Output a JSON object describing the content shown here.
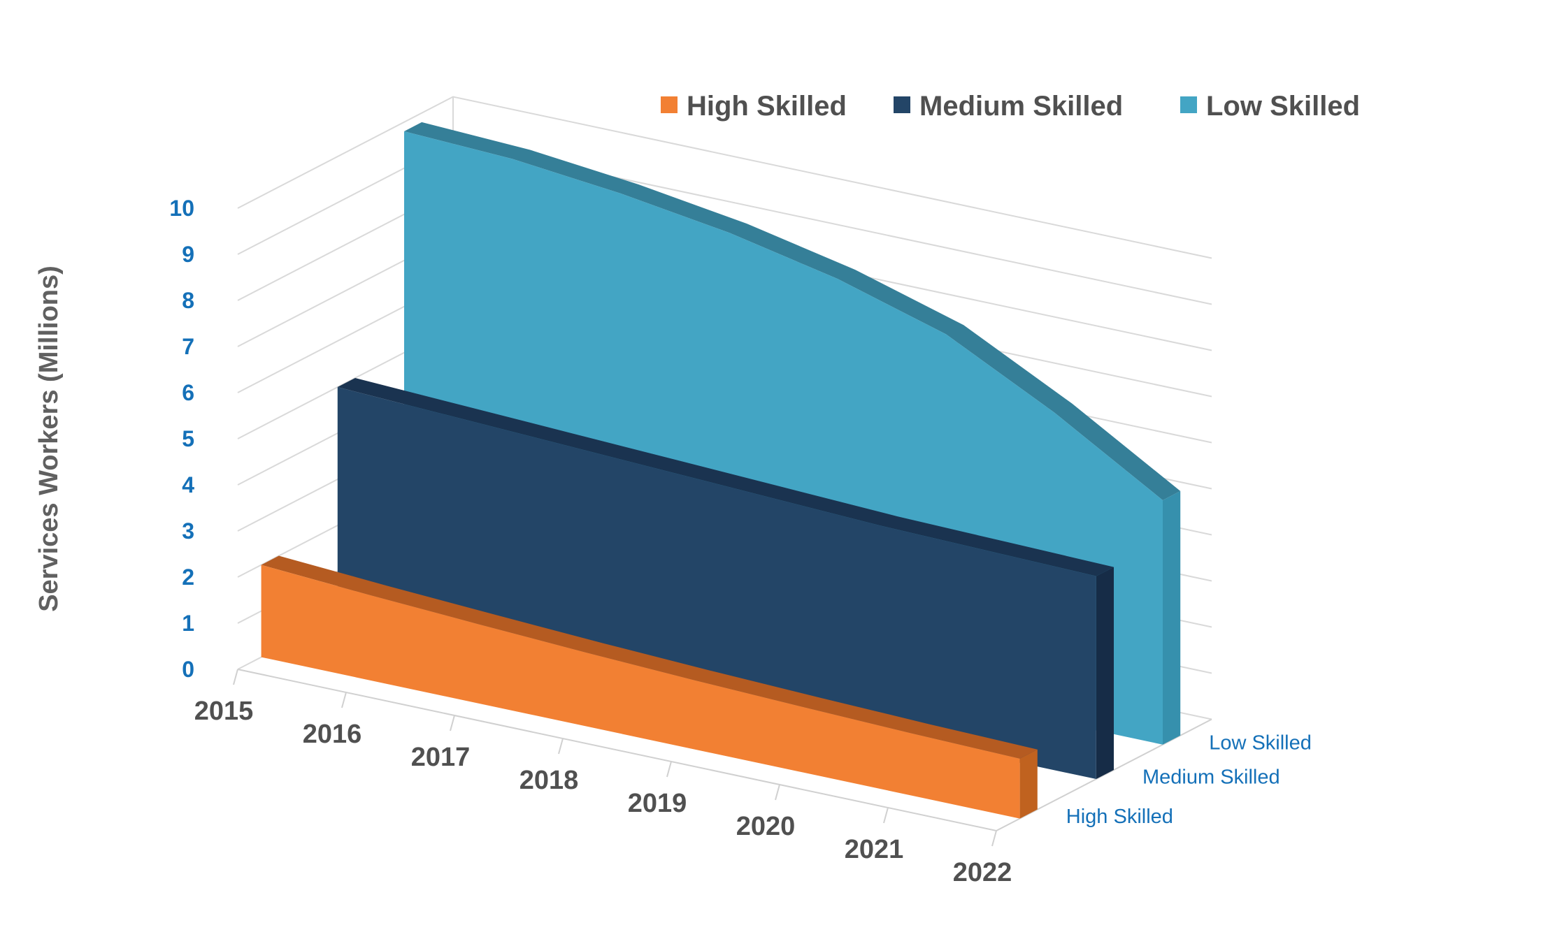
{
  "chart_data": {
    "type": "area",
    "variant": "3d-ribbon",
    "title": "",
    "xlabel": "",
    "ylabel": "Services Workers (Millions)",
    "ylim": [
      0,
      10
    ],
    "yticks": [
      "0",
      "1",
      "2",
      "3",
      "4",
      "5",
      "6",
      "7",
      "8",
      "9",
      "10"
    ],
    "categories": [
      "2015",
      "2016",
      "2017",
      "2018",
      "2019",
      "2020",
      "2021",
      "2022"
    ],
    "depth_labels": [
      "High Skilled",
      "Medium Skilled",
      "Low Skilled"
    ],
    "series": [
      {
        "name": "High Skilled",
        "color": "#f28033",
        "top_color": "#b55b21",
        "side_color": "#c0621f",
        "values": [
          2.0,
          1.85,
          1.72,
          1.6,
          1.5,
          1.42,
          1.35,
          1.3
        ]
      },
      {
        "name": "Medium Skilled",
        "color": "#234567",
        "top_color": "#1a3350",
        "side_color": "#162c47",
        "values": [
          5.0,
          4.9,
          4.8,
          4.7,
          4.6,
          4.5,
          4.45,
          4.4
        ]
      },
      {
        "name": "Low Skilled",
        "color": "#43a5c4",
        "top_color": "#357f98",
        "side_color": "#3690ad",
        "values": [
          9.8,
          9.7,
          9.45,
          9.1,
          8.6,
          7.9,
          6.7,
          5.3
        ]
      }
    ],
    "legend": {
      "position": "top-right"
    },
    "grid": true
  }
}
